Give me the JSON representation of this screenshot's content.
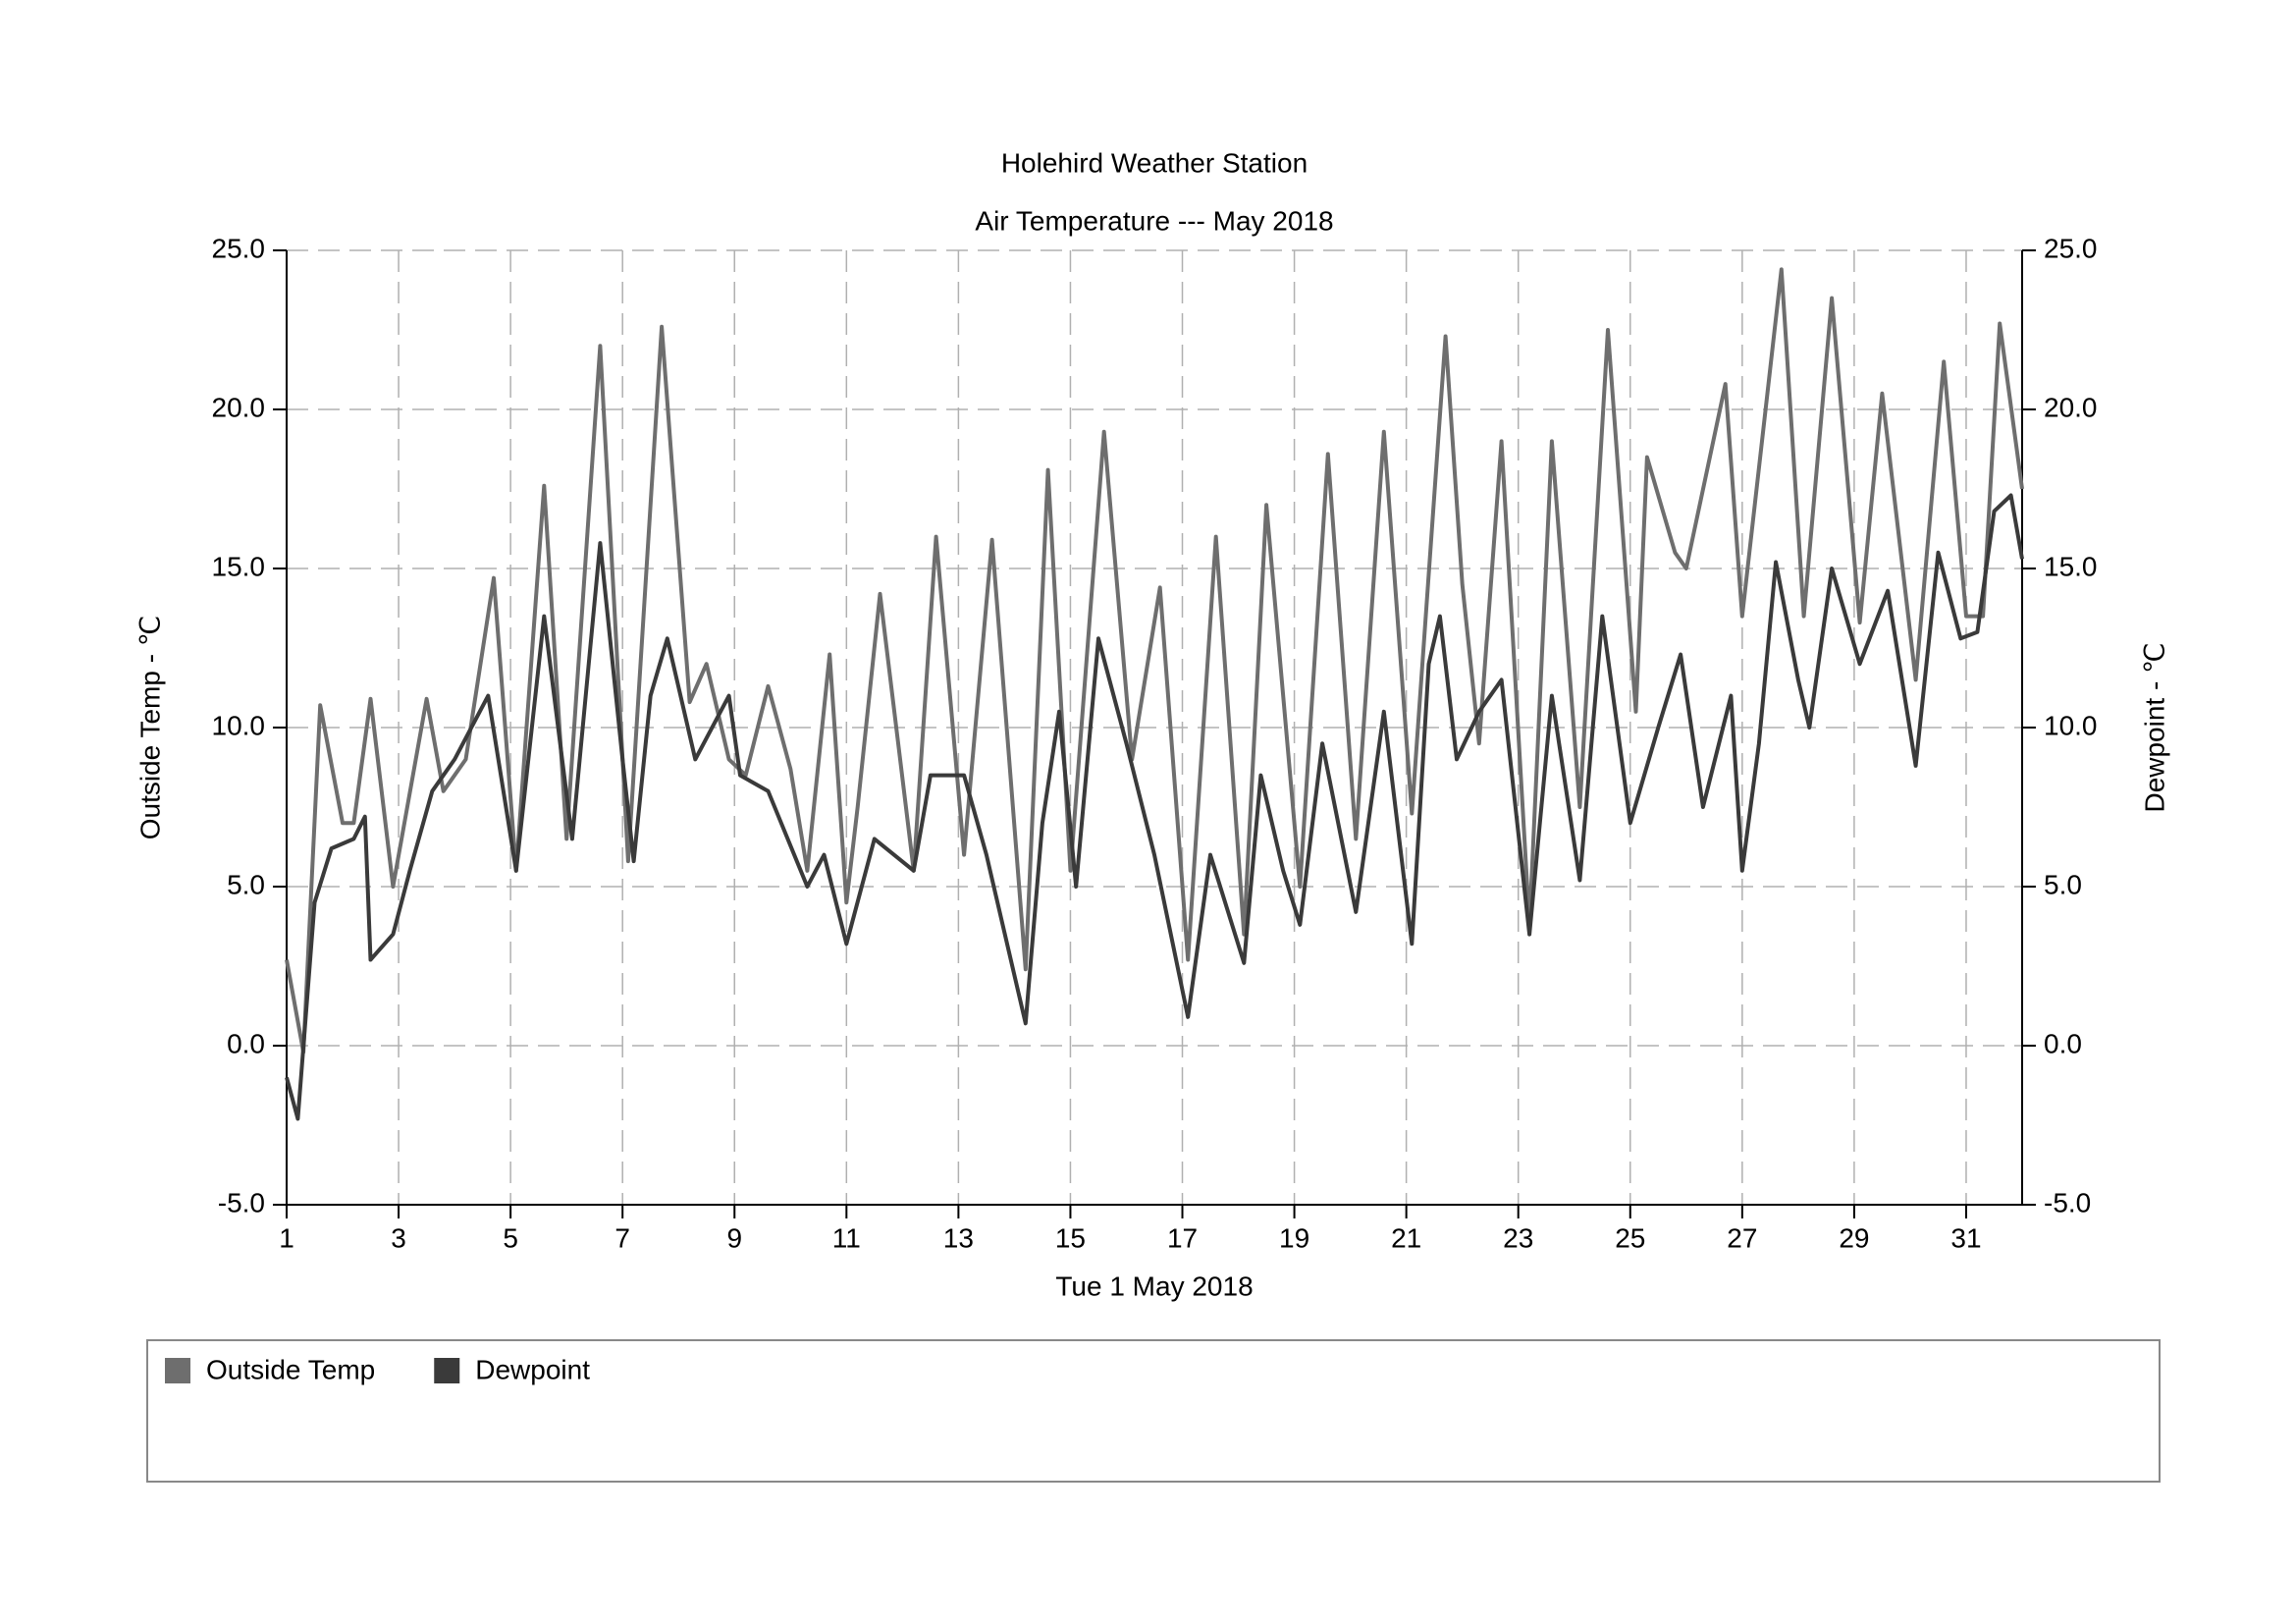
{
  "chart_data": {
    "type": "line",
    "title": "Holehird Weather Station",
    "subtitle": "Air Temperature --- May 2018",
    "x_label": "Tue 1 May 2018",
    "y_label": "Outside Temp - ℃",
    "y2_label": "Dewpoint - ℃",
    "xlim": [
      1,
      32
    ],
    "xticks": [
      1,
      3,
      5,
      7,
      9,
      11,
      13,
      15,
      17,
      19,
      21,
      23,
      25,
      27,
      29,
      31
    ],
    "ylim": [
      -5,
      25
    ],
    "yticks": [
      {
        "value": -5,
        "label": "-5.0"
      },
      {
        "value": 0,
        "label": "0.0"
      },
      {
        "value": 5,
        "label": "5.0"
      },
      {
        "value": 10,
        "label": "10.0"
      },
      {
        "value": 15,
        "label": "15.0"
      },
      {
        "value": 20,
        "label": "20.0"
      },
      {
        "value": 25,
        "label": "25.0"
      }
    ],
    "y2lim": [
      -5,
      25
    ],
    "y2ticks": [
      {
        "value": -5,
        "label": "-5.0"
      },
      {
        "value": 0,
        "label": "0.0"
      },
      {
        "value": 5,
        "label": "5.0"
      },
      {
        "value": 10,
        "label": "10.0"
      },
      {
        "value": 15,
        "label": "15.0"
      },
      {
        "value": 20,
        "label": "20.0"
      },
      {
        "value": 25,
        "label": "25.0"
      }
    ],
    "grid": true,
    "legend": "bottom",
    "series": [
      {
        "name": "Outside Temp",
        "color": "#6e6e6e",
        "x": [
          1.0,
          1.3,
          1.6,
          2.0,
          2.2,
          2.5,
          2.9,
          3.5,
          3.8,
          4.2,
          4.7,
          5.1,
          5.6,
          6.0,
          6.6,
          7.1,
          7.7,
          8.2,
          8.5,
          8.9,
          9.2,
          9.6,
          10.0,
          10.3,
          10.7,
          11.0,
          11.2,
          11.6,
          12.2,
          12.6,
          13.1,
          13.6,
          14.2,
          14.6,
          15.0,
          15.6,
          16.1,
          16.6,
          17.1,
          17.6,
          18.1,
          18.5,
          19.1,
          19.6,
          20.1,
          20.6,
          21.1,
          21.7,
          22.0,
          22.3,
          22.7,
          23.2,
          23.6,
          24.1,
          24.6,
          25.1,
          25.3,
          25.8,
          26.0,
          26.7,
          27.0,
          27.7,
          28.1,
          28.6,
          29.1,
          29.5,
          30.1,
          30.6,
          31.0,
          31.3,
          31.6,
          32.0
        ],
        "values": [
          2.7,
          -0.2,
          10.7,
          7.0,
          7.0,
          10.9,
          5.0,
          10.9,
          8.0,
          9.0,
          14.7,
          5.5,
          17.6,
          6.5,
          22.0,
          5.8,
          22.6,
          10.8,
          12.0,
          9.0,
          8.5,
          11.3,
          8.7,
          5.5,
          12.3,
          4.5,
          7.5,
          14.2,
          5.5,
          16.0,
          6.0,
          15.9,
          2.4,
          18.1,
          5.5,
          19.3,
          9.0,
          14.4,
          2.7,
          16.0,
          3.5,
          17.0,
          5.0,
          18.6,
          6.5,
          19.3,
          7.3,
          22.3,
          14.5,
          9.5,
          19.0,
          3.8,
          19.0,
          7.5,
          22.5,
          10.5,
          18.5,
          15.5,
          15.0,
          20.8,
          13.5,
          24.4,
          13.5,
          23.5,
          13.3,
          20.5,
          11.5,
          21.5,
          13.5,
          13.5,
          22.7,
          17.5
        ]
      },
      {
        "name": "Dewpoint",
        "color": "#3a3a3a",
        "axis": "y2",
        "x": [
          1.0,
          1.2,
          1.5,
          1.8,
          2.2,
          2.4,
          2.5,
          2.9,
          3.2,
          3.6,
          4.0,
          4.6,
          5.1,
          5.6,
          6.1,
          6.6,
          7.0,
          7.2,
          7.5,
          7.8,
          8.3,
          8.9,
          9.1,
          9.6,
          10.3,
          10.6,
          11.0,
          11.5,
          12.2,
          12.5,
          13.1,
          13.5,
          14.2,
          14.5,
          14.8,
          15.1,
          15.5,
          16.0,
          16.5,
          17.1,
          17.5,
          18.1,
          18.4,
          18.8,
          19.1,
          19.5,
          20.1,
          20.6,
          21.1,
          21.4,
          21.6,
          21.9,
          22.3,
          22.7,
          23.2,
          23.6,
          24.1,
          24.5,
          25.0,
          25.5,
          25.9,
          26.3,
          26.8,
          27.0,
          27.3,
          27.6,
          28.0,
          28.2,
          28.6,
          29.1,
          29.6,
          30.1,
          30.5,
          30.9,
          31.2,
          31.5,
          31.8,
          32.0
        ],
        "values": [
          -1.0,
          -2.3,
          4.5,
          6.2,
          6.5,
          7.2,
          2.7,
          3.5,
          5.5,
          8.0,
          9.0,
          11.0,
          5.5,
          13.5,
          6.5,
          15.8,
          9.0,
          5.8,
          11.0,
          12.8,
          9.0,
          11.0,
          8.5,
          8.0,
          5.0,
          6.0,
          3.2,
          6.5,
          5.5,
          8.5,
          8.5,
          6.0,
          0.7,
          7.0,
          10.5,
          5.0,
          12.8,
          9.5,
          6.0,
          0.9,
          6.0,
          2.6,
          8.5,
          5.5,
          3.8,
          9.5,
          4.2,
          10.5,
          3.2,
          12.0,
          13.5,
          9.0,
          10.5,
          11.5,
          3.5,
          11.0,
          5.2,
          13.5,
          7.0,
          10.0,
          12.3,
          7.5,
          11.0,
          5.5,
          9.5,
          15.2,
          11.5,
          10.0,
          15.0,
          12.0,
          14.3,
          8.8,
          15.5,
          12.8,
          13.0,
          16.8,
          17.3,
          15.3
        ]
      }
    ]
  }
}
